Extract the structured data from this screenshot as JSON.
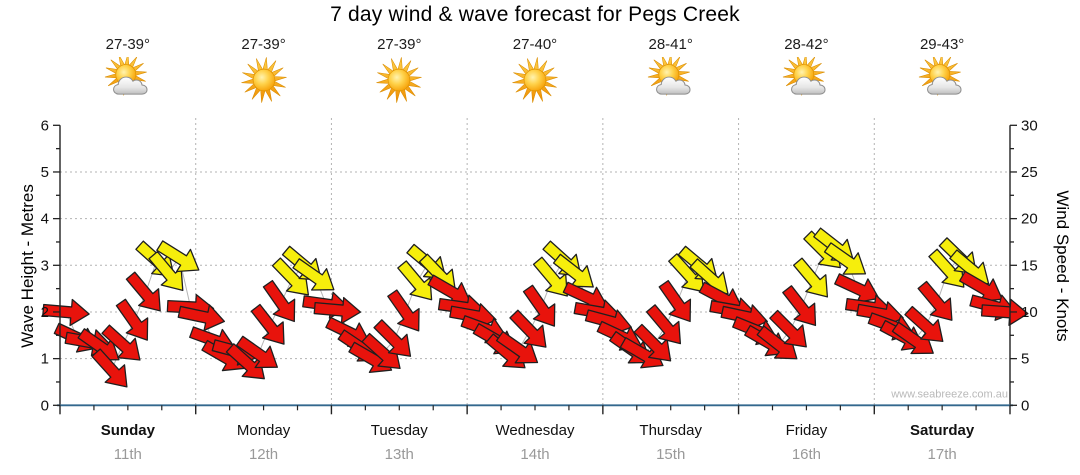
{
  "page": {
    "title": "7 day wind & wave forecast for Pegs Creek",
    "watermark": "www.seabreeze.com.au"
  },
  "colors": {
    "arrow_red": "#e8130c",
    "arrow_yellow": "#f6ee0c",
    "arrow_outline": "#1f1f1f",
    "grid": "#b3b3b3",
    "axis_black": "#222222",
    "bottom_axis_blue": "#33688e",
    "tick_label": "#111111",
    "date_gray": "#999999",
    "watermark_gray": "#b9b9b9"
  },
  "days": [
    {
      "name": "Sunday",
      "date": "11th",
      "temp": "27-39°",
      "icon": "partly-cloudy-icon",
      "bold": true
    },
    {
      "name": "Monday",
      "date": "12th",
      "temp": "27-39°",
      "icon": "sun-icon",
      "bold": false
    },
    {
      "name": "Tuesday",
      "date": "13th",
      "temp": "27-39°",
      "icon": "sun-icon",
      "bold": false
    },
    {
      "name": "Wednesday",
      "date": "14th",
      "temp": "27-40°",
      "icon": "sun-icon",
      "bold": false
    },
    {
      "name": "Thursday",
      "date": "15th",
      "temp": "28-41°",
      "icon": "partly-cloudy-icon",
      "bold": false
    },
    {
      "name": "Friday",
      "date": "16th",
      "temp": "28-42°",
      "icon": "partly-cloudy-icon",
      "bold": false
    },
    {
      "name": "Saturday",
      "date": "17th",
      "temp": "29-43°",
      "icon": "partly-cloudy-icon",
      "bold": true
    }
  ],
  "chart_data": {
    "type": "scatter",
    "subtype": "wind-arrow-forecast",
    "title": "7 day wind & wave forecast for Pegs Creek",
    "left_axis": {
      "label": "Wave Height - Metres",
      "min": 0,
      "max": 6,
      "major_step": 1,
      "minor_step": 0.5
    },
    "right_axis": {
      "label": "Wind Speed - Knots",
      "min": 0,
      "max": 30,
      "major_step": 5,
      "minor_step": 2.5
    },
    "x_axis": {
      "categories": [
        "Sunday",
        "Monday",
        "Tuesday",
        "Wednesday",
        "Thursday",
        "Friday",
        "Saturday"
      ],
      "minor_ticks_per_day": 4
    },
    "grid": true,
    "wave_height_m": 0,
    "wind_arrows": {
      "speed_unit": "knots",
      "direction_unit": "degrees clockwise from pointing-right",
      "hours": [
        0,
        2,
        4,
        6,
        8,
        10,
        12,
        14,
        16,
        18,
        20,
        22
      ],
      "yellow_threshold_knots": 13,
      "days": [
        {
          "day": "Sunday",
          "speeds": [
            10.0,
            7.2,
            6.8,
            6.3,
            3.8,
            6.5,
            9.0,
            12.0,
            15.5,
            14.2,
            15.8,
            10.5
          ],
          "directions": [
            5,
            25,
            10,
            35,
            48,
            42,
            55,
            50,
            42,
            50,
            32,
            3
          ]
        },
        {
          "day": "Monday",
          "speeds": [
            9.5,
            7.0,
            5.2,
            5.8,
            4.5,
            5.5,
            8.5,
            11.0,
            13.6,
            15.0,
            13.8,
            10.8
          ],
          "directions": [
            12,
            20,
            30,
            15,
            42,
            35,
            52,
            55,
            46,
            40,
            35,
            8
          ]
        },
        {
          "day": "Tuesday",
          "speeds": [
            10.2,
            7.8,
            6.2,
            5.0,
            5.6,
            7.0,
            10.0,
            13.2,
            15.2,
            14.0,
            12.2,
            10.5
          ],
          "directions": [
            5,
            26,
            34,
            30,
            42,
            45,
            55,
            50,
            40,
            46,
            30,
            8
          ]
        },
        {
          "day": "Wednesday",
          "speeds": [
            9.6,
            8.2,
            7.0,
            5.6,
            6.0,
            8.0,
            10.5,
            13.6,
            15.5,
            14.2,
            11.6,
            10.0
          ],
          "directions": [
            10,
            20,
            30,
            40,
            35,
            46,
            55,
            50,
            42,
            38,
            25,
            10
          ]
        },
        {
          "day": "Thursday",
          "speeds": [
            9.0,
            7.4,
            6.0,
            5.5,
            6.5,
            8.5,
            11.0,
            14.0,
            15.0,
            13.6,
            11.5,
            10.2
          ],
          "directions": [
            15,
            25,
            35,
            30,
            45,
            50,
            55,
            48,
            40,
            42,
            28,
            10
          ]
        },
        {
          "day": "Friday",
          "speeds": [
            9.5,
            8.0,
            6.8,
            6.5,
            8.0,
            10.5,
            13.5,
            16.5,
            17.0,
            15.5,
            12.5,
            10.5
          ],
          "directions": [
            12,
            22,
            30,
            38,
            45,
            52,
            50,
            45,
            38,
            35,
            25,
            8
          ]
        },
        {
          "day": "Saturday",
          "speeds": [
            9.8,
            8.5,
            7.4,
            7.0,
            8.5,
            11.0,
            14.5,
            15.8,
            14.6,
            12.6,
            10.6,
            10.0
          ],
          "directions": [
            10,
            20,
            28,
            35,
            42,
            50,
            48,
            44,
            40,
            30,
            15,
            4
          ]
        }
      ]
    }
  }
}
